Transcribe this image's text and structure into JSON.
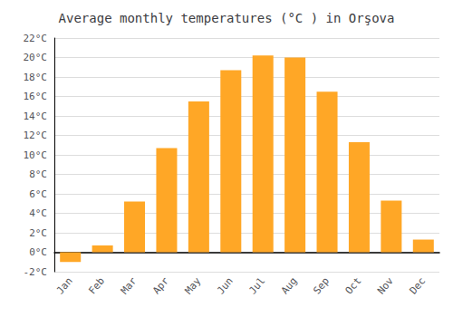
{
  "chart_data": {
    "type": "bar",
    "title": "Average monthly temperatures (°C ) in Orşova",
    "categories": [
      "Jan",
      "Feb",
      "Mar",
      "Apr",
      "May",
      "Jun",
      "Jul",
      "Aug",
      "Sep",
      "Oct",
      "Nov",
      "Dec"
    ],
    "values": [
      -1.0,
      0.7,
      5.2,
      10.7,
      15.5,
      18.7,
      20.2,
      20.0,
      16.5,
      11.3,
      5.3,
      1.3
    ],
    "color": "#FFA726",
    "ylim": [
      -2,
      22
    ],
    "yticks": [
      {
        "value": -2,
        "label": "-2°C"
      },
      {
        "value": 0,
        "label": "0°C"
      },
      {
        "value": 2,
        "label": "2°C"
      },
      {
        "value": 4,
        "label": "4°C"
      },
      {
        "value": 6,
        "label": "6°C"
      },
      {
        "value": 8,
        "label": "8°C"
      },
      {
        "value": 10,
        "label": "10°C"
      },
      {
        "value": 12,
        "label": "12°C"
      },
      {
        "value": 14,
        "label": "14°C"
      },
      {
        "value": 16,
        "label": "16°C"
      },
      {
        "value": 18,
        "label": "18°C"
      },
      {
        "value": 20,
        "label": "20°C"
      },
      {
        "value": 22,
        "label": "22°C"
      }
    ],
    "grid": true
  }
}
